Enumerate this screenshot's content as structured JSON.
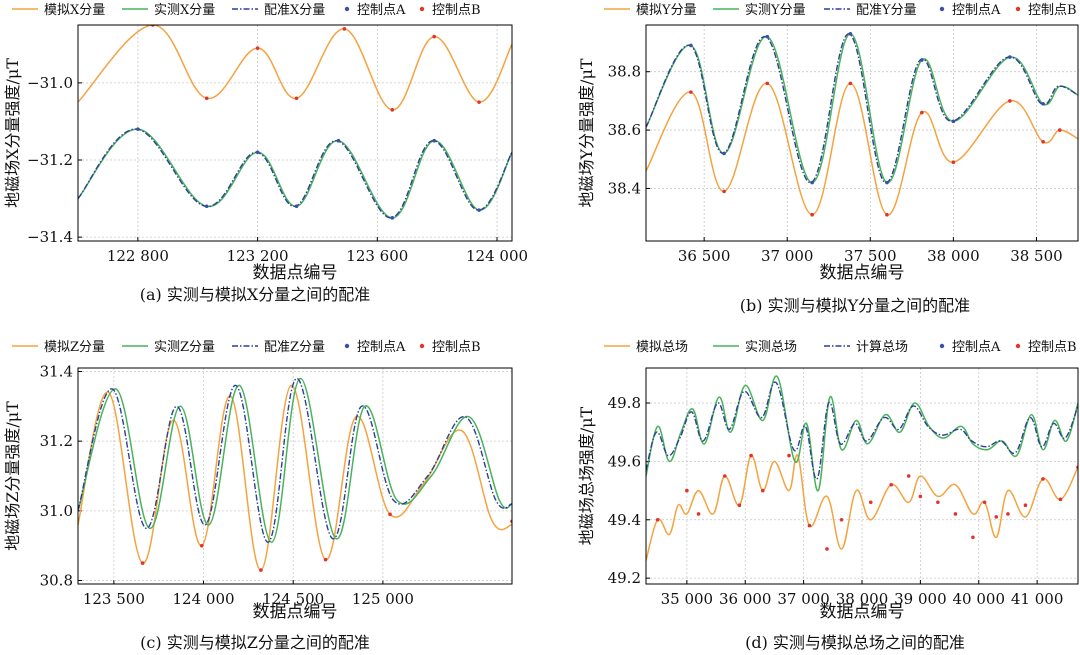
{
  "colors": {
    "sim": "#F4A340",
    "meas": "#49B35A",
    "reg": "#2C3F9A",
    "ptA": "#3B4FA8",
    "ptB": "#E0342F"
  },
  "chart_data": [
    {
      "type": "line",
      "caption": "(a) 实测与模拟X分量之间的配准",
      "ylabel": "地磁场X分量强度/μT",
      "xlabel": "数据点编号",
      "legend": [
        "模拟X分量",
        "实测X分量",
        "配准X分量",
        "控制点A",
        "控制点B"
      ],
      "xlim": [
        122600,
        124050
      ],
      "ylim": [
        -31.41,
        -30.85
      ],
      "xticks": [
        122800,
        123200,
        123600,
        124000
      ],
      "xtick_labels": [
        "122 800",
        "123 200",
        "123 600",
        "124 000"
      ],
      "yticks": [
        -31.0,
        -31.2,
        -31.4
      ],
      "ytick_labels": [
        "−31.0",
        "−31.2",
        "−31.4"
      ],
      "series": [
        {
          "name": "模拟X分量",
          "role": "sim",
          "x": [
            122600,
            122850,
            123030,
            123200,
            123330,
            123490,
            123650,
            123790,
            123940,
            124050
          ],
          "y": [
            -31.05,
            -30.85,
            -31.04,
            -30.91,
            -31.04,
            -30.86,
            -31.07,
            -30.88,
            -31.05,
            -30.9
          ]
        },
        {
          "name": "实测X分量",
          "role": "meas",
          "x": [
            122600,
            122800,
            123030,
            123200,
            123330,
            123470,
            123650,
            123790,
            123940,
            124050
          ],
          "y": [
            -31.3,
            -31.12,
            -31.32,
            -31.18,
            -31.32,
            -31.15,
            -31.35,
            -31.15,
            -31.33,
            -31.18
          ]
        },
        {
          "name": "配准X分量",
          "role": "reg",
          "x": [
            122600,
            122795,
            123025,
            123195,
            123325,
            123465,
            123645,
            123785,
            123935,
            124050
          ],
          "y": [
            -31.3,
            -31.12,
            -31.32,
            -31.18,
            -31.32,
            -31.15,
            -31.35,
            -31.15,
            -31.33,
            -31.18
          ]
        }
      ],
      "pointsA": [
        [
          122800,
          -31.12
        ],
        [
          123030,
          -31.32
        ],
        [
          123200,
          -31.18
        ],
        [
          123330,
          -31.32
        ],
        [
          123470,
          -31.15
        ],
        [
          123650,
          -31.35
        ],
        [
          123790,
          -31.15
        ],
        [
          123940,
          -31.33
        ]
      ],
      "pointsB": [
        [
          122850,
          -30.85
        ],
        [
          123030,
          -31.04
        ],
        [
          123200,
          -30.91
        ],
        [
          123330,
          -31.04
        ],
        [
          123490,
          -30.86
        ],
        [
          123650,
          -31.07
        ],
        [
          123790,
          -30.88
        ],
        [
          123940,
          -31.05
        ]
      ]
    },
    {
      "type": "line",
      "caption": "(b) 实测与模拟Y分量之间的配准",
      "ylabel": "地磁场Y分量强度/μT",
      "xlabel": "数据点编号",
      "legend": [
        "模拟Y分量",
        "实测Y分量",
        "配准Y分量",
        "控制点A",
        "控制点B"
      ],
      "xlim": [
        36150,
        38750
      ],
      "ylim": [
        38.22,
        38.96
      ],
      "xticks": [
        36500,
        37000,
        37500,
        38000,
        38500
      ],
      "xtick_labels": [
        "36 500",
        "37 000",
        "37 500",
        "38 000",
        "38 500"
      ],
      "yticks": [
        38.4,
        38.6,
        38.8
      ],
      "ytick_labels": [
        "38.4",
        "38.6",
        "38.8"
      ],
      "series": [
        {
          "name": "模拟Y分量",
          "role": "sim",
          "x": [
            36150,
            36420,
            36620,
            36880,
            37150,
            37380,
            37600,
            37810,
            38000,
            38340,
            38540,
            38640,
            38750
          ],
          "y": [
            38.46,
            38.73,
            38.39,
            38.76,
            38.31,
            38.76,
            38.31,
            38.66,
            38.49,
            38.7,
            38.56,
            38.6,
            38.57
          ]
        },
        {
          "name": "实测Y分量",
          "role": "meas",
          "x": [
            36150,
            36420,
            36620,
            36880,
            37150,
            37380,
            37600,
            37810,
            38000,
            38340,
            38540,
            38640,
            38750
          ],
          "y": [
            38.61,
            38.89,
            38.52,
            38.92,
            38.42,
            38.93,
            38.42,
            38.84,
            38.63,
            38.85,
            38.69,
            38.75,
            38.72
          ]
        },
        {
          "name": "配准Y分量",
          "role": "reg",
          "x": [
            36150,
            36415,
            36615,
            36870,
            37140,
            37370,
            37590,
            37800,
            37990,
            38330,
            38530,
            38630,
            38750
          ],
          "y": [
            38.61,
            38.89,
            38.52,
            38.92,
            38.42,
            38.93,
            38.42,
            38.84,
            38.63,
            38.85,
            38.69,
            38.75,
            38.72
          ]
        }
      ],
      "pointsA": [
        [
          36420,
          38.89
        ],
        [
          36620,
          38.52
        ],
        [
          36880,
          38.92
        ],
        [
          37150,
          38.42
        ],
        [
          37380,
          38.93
        ],
        [
          37600,
          38.42
        ],
        [
          37810,
          38.84
        ],
        [
          38000,
          38.63
        ],
        [
          38340,
          38.85
        ],
        [
          38540,
          38.69
        ]
      ],
      "pointsB": [
        [
          36420,
          38.73
        ],
        [
          36620,
          38.39
        ],
        [
          36880,
          38.76
        ],
        [
          37150,
          38.31
        ],
        [
          37380,
          38.76
        ],
        [
          37600,
          38.31
        ],
        [
          37810,
          38.66
        ],
        [
          38000,
          38.49
        ],
        [
          38340,
          38.7
        ],
        [
          38540,
          38.56
        ],
        [
          38640,
          38.6
        ]
      ]
    },
    {
      "type": "line",
      "caption": "(c) 实测与模拟Z分量之间的配准",
      "ylabel": "地磁场Z分量强度/μT",
      "xlabel": "数据点编号",
      "legend": [
        "模拟Z分量",
        "实测Z分量",
        "配准Z分量",
        "控制点A",
        "控制点B"
      ],
      "xlim": [
        123300,
        125720
      ],
      "ylim": [
        30.79,
        31.41
      ],
      "xticks": [
        123500,
        124000,
        124500,
        125000
      ],
      "xtick_labels": [
        "123 500",
        "124 000",
        "124 500",
        "125 000"
      ],
      "yticks": [
        30.8,
        31.0,
        31.2,
        31.4
      ],
      "ytick_labels": [
        "30.8",
        "31.0",
        "31.2",
        "31.4"
      ],
      "series": [
        {
          "name": "模拟Z分量",
          "role": "sim",
          "x": [
            123300,
            123470,
            123660,
            123830,
            123990,
            124150,
            124320,
            124490,
            124680,
            124850,
            125040,
            125230,
            125440,
            125610,
            125720
          ],
          "y": [
            30.96,
            31.34,
            30.85,
            31.26,
            30.9,
            31.33,
            30.83,
            31.36,
            30.86,
            31.27,
            30.99,
            31.08,
            31.23,
            30.97,
            30.96
          ]
        },
        {
          "name": "实测Z分量",
          "role": "meas",
          "x": [
            123300,
            123510,
            123700,
            123870,
            124030,
            124200,
            124380,
            124540,
            124740,
            124900,
            125080,
            125270,
            125480,
            125650,
            125720
          ],
          "y": [
            31.0,
            31.35,
            30.95,
            31.3,
            30.96,
            31.36,
            30.91,
            31.38,
            30.92,
            31.3,
            31.03,
            31.1,
            31.27,
            31.03,
            31.02
          ]
        },
        {
          "name": "配准Z分量",
          "role": "reg",
          "x": [
            123300,
            123490,
            123680,
            123850,
            124010,
            124180,
            124360,
            124520,
            124720,
            124880,
            125060,
            125250,
            125460,
            125630,
            125720
          ],
          "y": [
            31.0,
            31.35,
            30.95,
            31.3,
            30.96,
            31.36,
            30.91,
            31.38,
            30.92,
            31.3,
            31.03,
            31.1,
            31.27,
            31.03,
            31.02
          ]
        }
      ],
      "pointsA": [],
      "pointsB": [
        [
          123660,
          30.85
        ],
        [
          123990,
          30.9
        ],
        [
          124320,
          30.83
        ],
        [
          124680,
          30.86
        ],
        [
          125040,
          30.99
        ],
        [
          125720,
          30.97
        ]
      ]
    },
    {
      "type": "line",
      "caption": "(d) 实测与模拟总场之间的配准",
      "ylabel": "地磁场总场强度/μT",
      "xlabel": "数据点编号",
      "legend": [
        "模拟总场",
        "实测总场",
        "计算总场",
        "控制点A",
        "控制点B"
      ],
      "xlim": [
        34300,
        41700
      ],
      "ylim": [
        49.18,
        49.92
      ],
      "xticks": [
        35000,
        36000,
        37000,
        38000,
        39000,
        40000,
        41000
      ],
      "xtick_labels": [
        "35 000",
        "36 000",
        "37 000",
        "38 000",
        "39 000",
        "40 000",
        "41 000"
      ],
      "yticks": [
        49.2,
        49.4,
        49.6,
        49.8
      ],
      "ytick_labels": [
        "49.2",
        "49.4",
        "49.6",
        "49.8"
      ],
      "series": [
        {
          "name": "模拟总场",
          "role": "sim",
          "x": [
            34300,
            34500,
            34700,
            34850,
            35000,
            35200,
            35450,
            35650,
            35900,
            36100,
            36300,
            36500,
            36750,
            36900,
            37100,
            37400,
            37650,
            37900,
            38150,
            38500,
            38800,
            39000,
            39300,
            39600,
            39900,
            40100,
            40300,
            40500,
            40800,
            41100,
            41400,
            41700
          ],
          "y": [
            49.26,
            49.4,
            49.35,
            49.45,
            49.42,
            49.5,
            49.42,
            49.55,
            49.45,
            49.62,
            49.5,
            49.6,
            49.5,
            49.62,
            49.38,
            49.48,
            49.3,
            49.5,
            49.4,
            49.52,
            49.46,
            49.55,
            49.48,
            49.52,
            49.42,
            49.46,
            49.34,
            49.5,
            49.41,
            49.54,
            49.47,
            49.58
          ]
        },
        {
          "name": "实测总场",
          "role": "meas",
          "x": [
            34300,
            34500,
            34700,
            34900,
            35100,
            35300,
            35550,
            35750,
            36000,
            36300,
            36550,
            36850,
            37050,
            37250,
            37450,
            37650,
            37900,
            38100,
            38400,
            38650,
            38900,
            39150,
            39400,
            39700,
            39900,
            40150,
            40400,
            40650,
            40900,
            41100,
            41300,
            41500,
            41700
          ],
          "y": [
            49.55,
            49.72,
            49.6,
            49.7,
            49.78,
            49.66,
            49.82,
            49.7,
            49.86,
            49.74,
            49.89,
            49.6,
            49.73,
            49.5,
            49.82,
            49.64,
            49.74,
            49.66,
            49.76,
            49.7,
            49.8,
            49.72,
            49.68,
            49.72,
            49.66,
            49.64,
            49.67,
            49.62,
            49.76,
            49.64,
            49.74,
            49.67,
            49.8
          ]
        },
        {
          "name": "计算总场",
          "role": "reg",
          "x": [
            34300,
            34480,
            34680,
            34880,
            35080,
            35280,
            35530,
            35730,
            35980,
            36280,
            36530,
            36830,
            37030,
            37230,
            37430,
            37630,
            37880,
            38080,
            38380,
            38630,
            38880,
            39130,
            39380,
            39680,
            39880,
            40130,
            40380,
            40630,
            40880,
            41080,
            41280,
            41480,
            41700
          ],
          "y": [
            49.57,
            49.7,
            49.62,
            49.68,
            49.77,
            49.67,
            49.8,
            49.71,
            49.84,
            49.75,
            49.87,
            49.64,
            49.72,
            49.54,
            49.8,
            49.66,
            49.73,
            49.67,
            49.75,
            49.71,
            49.79,
            49.72,
            49.69,
            49.71,
            49.67,
            49.65,
            49.67,
            49.63,
            49.75,
            49.65,
            49.73,
            49.68,
            49.79
          ]
        }
      ],
      "pointsA": [],
      "pointsB": [
        [
          34500,
          49.4
        ],
        [
          35000,
          49.5
        ],
        [
          35200,
          49.42
        ],
        [
          35650,
          49.55
        ],
        [
          35900,
          49.45
        ],
        [
          36100,
          49.62
        ],
        [
          36300,
          49.5
        ],
        [
          36750,
          49.62
        ],
        [
          37100,
          49.38
        ],
        [
          37400,
          49.3
        ],
        [
          37650,
          49.4
        ],
        [
          38150,
          49.46
        ],
        [
          38500,
          49.52
        ],
        [
          38800,
          49.55
        ],
        [
          39000,
          49.48
        ],
        [
          39300,
          49.46
        ],
        [
          39600,
          49.42
        ],
        [
          39900,
          49.34
        ],
        [
          40100,
          49.46
        ],
        [
          40300,
          49.41
        ],
        [
          40500,
          49.42
        ],
        [
          40800,
          49.45
        ],
        [
          41100,
          49.54
        ],
        [
          41400,
          49.47
        ],
        [
          41700,
          49.58
        ]
      ]
    }
  ]
}
